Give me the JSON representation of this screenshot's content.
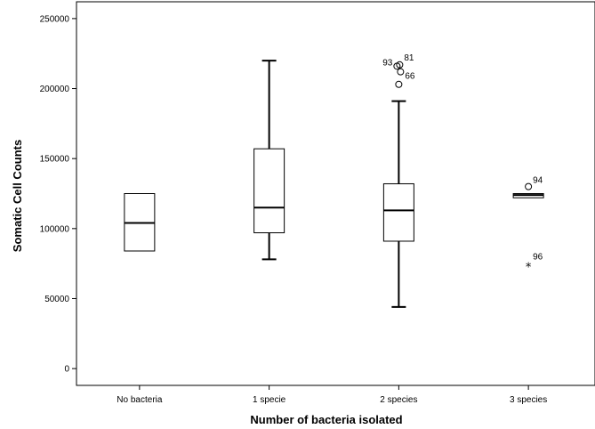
{
  "chart_data": {
    "type": "boxplot",
    "xlabel": "Number of bacteria isolated",
    "ylabel": "Somatic Cell Counts",
    "ylim": [
      -12000,
      262000
    ],
    "yticks": [
      0,
      50000,
      100000,
      150000,
      200000,
      250000
    ],
    "ytick_labels": [
      "0",
      "50000",
      "100000",
      "150000",
      "200000",
      "250000"
    ],
    "categories": [
      "No bacteria",
      "1 specie",
      "2 species",
      "3 species"
    ],
    "boxes": [
      {
        "category": "No bacteria",
        "whisker_low": 84000,
        "q1": 84000,
        "median": 104000,
        "q3": 125000,
        "whisker_high": 125000,
        "outliers": []
      },
      {
        "category": "1 specie",
        "whisker_low": 78000,
        "q1": 97000,
        "median": 115000,
        "q3": 157000,
        "whisker_high": 220000,
        "outliers": []
      },
      {
        "category": "2 species",
        "whisker_low": 44000,
        "q1": 91000,
        "median": 113000,
        "q3": 132000,
        "whisker_high": 191000,
        "outliers": [
          {
            "value": 216000,
            "label": "93",
            "marker": "circle"
          },
          {
            "value": 217000,
            "label": "81",
            "marker": "circle"
          },
          {
            "value": 212000,
            "label": "66",
            "marker": "circle"
          },
          {
            "value": 203000,
            "label": "",
            "marker": "circle"
          }
        ]
      },
      {
        "category": "3 species",
        "whisker_low": 122000,
        "q1": 122000,
        "median": 124000,
        "q3": 125000,
        "whisker_high": 125000,
        "outliers": [
          {
            "value": 130000,
            "label": "94",
            "marker": "circle"
          },
          {
            "value": 74000,
            "label": "96",
            "marker": "star"
          }
        ]
      }
    ]
  }
}
